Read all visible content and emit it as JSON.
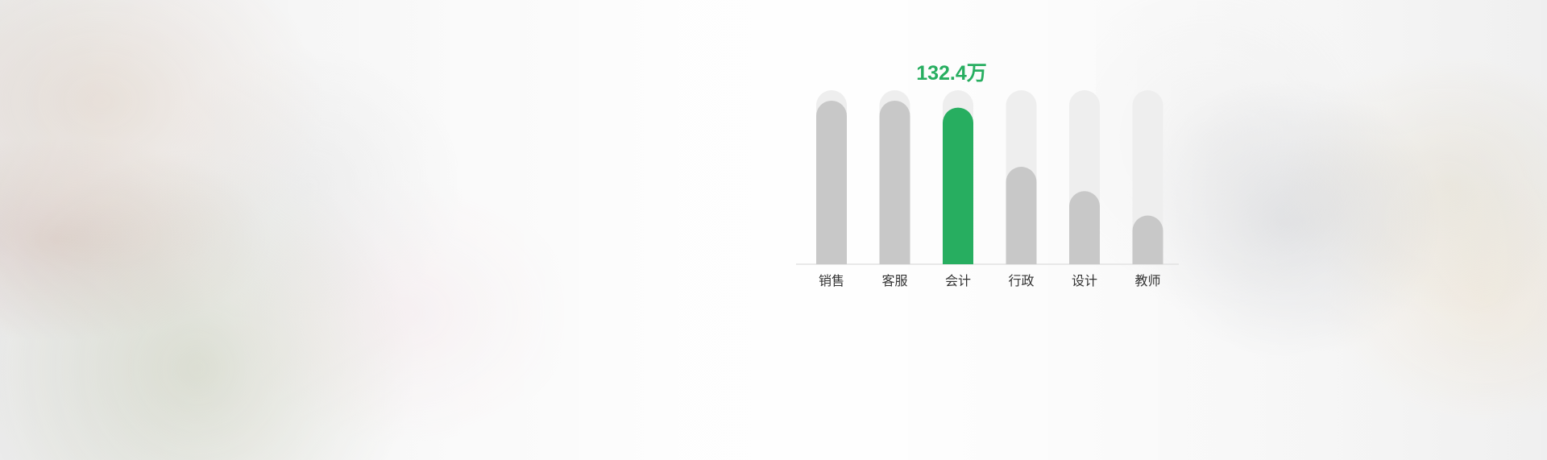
{
  "colors": {
    "background": "#f3f3f3",
    "track": "#eeeeee",
    "inactive_bar": "#c8c8c8",
    "active_bar": "#27ae60",
    "axis": "#e2e2e2",
    "label": "#333333"
  },
  "chart_data": {
    "type": "bar",
    "title": "",
    "xlabel": "",
    "ylabel": "",
    "ylim": [
      0,
      100
    ],
    "categories": [
      "销售",
      "客服",
      "会计",
      "行政",
      "设计",
      "教师"
    ],
    "values": [
      94,
      94,
      90,
      56,
      42,
      28
    ],
    "highlighted_index": 2,
    "highlight_value_label": "132.4万",
    "grid": false,
    "legend": "none"
  }
}
